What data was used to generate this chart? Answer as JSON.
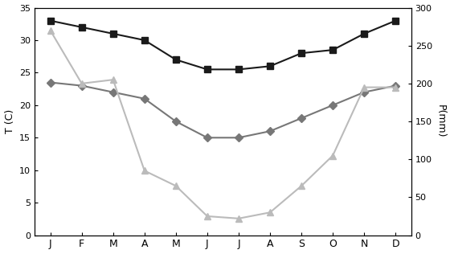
{
  "months": [
    "J",
    "F",
    "M",
    "A",
    "M",
    "J",
    "J",
    "A",
    "S",
    "O",
    "N",
    "D"
  ],
  "temp_max": [
    33,
    32,
    31,
    30,
    27,
    25.5,
    25.5,
    26,
    28,
    28.5,
    31,
    33
  ],
  "temp_min": [
    23.5,
    23,
    22,
    21,
    17.5,
    15,
    15,
    16,
    18,
    20,
    22,
    23
  ],
  "precip": [
    270,
    200,
    205,
    85,
    65,
    25,
    22,
    30,
    65,
    105,
    195,
    195
  ],
  "temp_max_color": "#1a1a1a",
  "temp_min_color": "#777777",
  "precip_color": "#bbbbbb",
  "ylim_left": [
    0,
    35
  ],
  "ylim_right": [
    0,
    300
  ],
  "yticks_left": [
    0,
    5,
    10,
    15,
    20,
    25,
    30,
    35
  ],
  "yticks_right": [
    0,
    50,
    100,
    150,
    200,
    250,
    300
  ],
  "ylabel_left": "T (C)",
  "ylabel_right": "P(mm)",
  "figsize": [
    5.6,
    3.16
  ],
  "dpi": 100
}
